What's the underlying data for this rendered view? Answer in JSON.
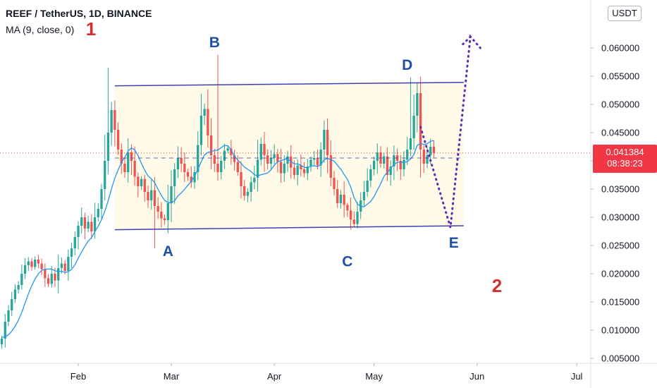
{
  "legend": {
    "title": "REEF / TetherUS, 1D, BINANCE",
    "indicator": "MA (9, close, 0)"
  },
  "currency": "USDT",
  "last_price": {
    "value": "0.041384",
    "countdown": "08:38:23"
  },
  "annotations": {
    "mark_1": "1",
    "mark_2": "2"
  },
  "colors": {
    "up": "#26a69a",
    "down": "#ef5350",
    "ma": "#2196f3",
    "channel": "#3f3fae",
    "channel_fill": "#fffbe6",
    "projection": "#5b2bb5",
    "last_price": "#f23645",
    "wave_labels": "#1e4fa8",
    "mark_labels": "#d32f2f"
  },
  "chart_data": {
    "type": "candlestick",
    "symbol": "REEF / TetherUS",
    "interval": "1D",
    "exchange": "BINANCE",
    "x_ticks": [
      "Feb",
      "Mar",
      "Apr",
      "May",
      "Jun",
      "Jul"
    ],
    "y_ticks": [
      "0.005000",
      "0.010000",
      "0.015000",
      "0.020000",
      "0.025000",
      "0.030000",
      "0.035000",
      "0.040000",
      "0.045000",
      "0.050000",
      "0.055000",
      "0.060000"
    ],
    "y_range": [
      0.0035,
      0.065
    ],
    "candle_dates_range": [
      "2021-01-01",
      "2021-05-15"
    ],
    "close_prices": [
      0.0105,
      0.0102,
      0.0098,
      0.0093,
      0.0085,
      0.0072,
      0.0068,
      0.0075,
      0.0085,
      0.0115,
      0.0135,
      0.0155,
      0.0172,
      0.018,
      0.02,
      0.0215,
      0.0222,
      0.0212,
      0.0225,
      0.0218,
      0.0208,
      0.0192,
      0.0182,
      0.02,
      0.0188,
      0.021,
      0.0218,
      0.0205,
      0.023,
      0.0245,
      0.0265,
      0.0285,
      0.03,
      0.028,
      0.0292,
      0.0275,
      0.03,
      0.0315,
      0.035,
      0.04,
      0.045,
      0.049,
      0.0455,
      0.042,
      0.0395,
      0.038,
      0.0415,
      0.04,
      0.0372,
      0.0355,
      0.0368,
      0.0345,
      0.033,
      0.0348,
      0.032,
      0.031,
      0.0298,
      0.0295,
      0.0325,
      0.0355,
      0.0385,
      0.0405,
      0.0395,
      0.038,
      0.0372,
      0.0362,
      0.038,
      0.0428,
      0.048,
      0.0492,
      0.0445,
      0.041,
      0.0395,
      0.038,
      0.04,
      0.0418,
      0.0422,
      0.041,
      0.0398,
      0.038,
      0.0355,
      0.0338,
      0.0345,
      0.0362,
      0.037,
      0.0402,
      0.043,
      0.041,
      0.0395,
      0.0405,
      0.0412,
      0.0398,
      0.0378,
      0.0395,
      0.0408,
      0.0388,
      0.0375,
      0.0392,
      0.0385,
      0.0378,
      0.039,
      0.0402,
      0.0405,
      0.0392,
      0.042,
      0.0455,
      0.041,
      0.037,
      0.035,
      0.0325,
      0.034,
      0.0322,
      0.0312,
      0.0296,
      0.0288,
      0.031,
      0.033,
      0.0345,
      0.0365,
      0.0385,
      0.04,
      0.0415,
      0.0395,
      0.0408,
      0.0375,
      0.039,
      0.041,
      0.04,
      0.0385,
      0.0402,
      0.042,
      0.044,
      0.048,
      0.052,
      0.042,
      0.0395,
      0.041,
      0.0425,
      0.0414
    ],
    "ma_period": 9,
    "channel": {
      "upper": [
        {
          "date": "2021-02-12",
          "price": 0.0533
        },
        {
          "date": "2021-05-28",
          "price": 0.0539
        }
      ],
      "lower": [
        {
          "date": "2021-02-12",
          "price": 0.0278
        },
        {
          "date": "2021-05-28",
          "price": 0.0285
        }
      ],
      "midline_price": 0.0405
    },
    "projection": [
      {
        "date": "2021-05-15",
        "price": 0.046
      },
      {
        "date": "2021-05-24",
        "price": 0.0282
      },
      {
        "date": "2021-05-30",
        "price": 0.062
      },
      {
        "date": "2021-06-02",
        "price": 0.06
      }
    ],
    "wave_labels": [
      {
        "text": "A",
        "date": "2021-02-28",
        "price": 0.024
      },
      {
        "text": "B",
        "date": "2021-03-14",
        "price": 0.061
      },
      {
        "text": "C",
        "date": "2021-04-23",
        "price": 0.0222
      },
      {
        "text": "D",
        "date": "2021-05-11",
        "price": 0.057
      },
      {
        "text": "E",
        "date": "2021-05-25",
        "price": 0.0255
      }
    ],
    "last_price": 0.041384
  }
}
